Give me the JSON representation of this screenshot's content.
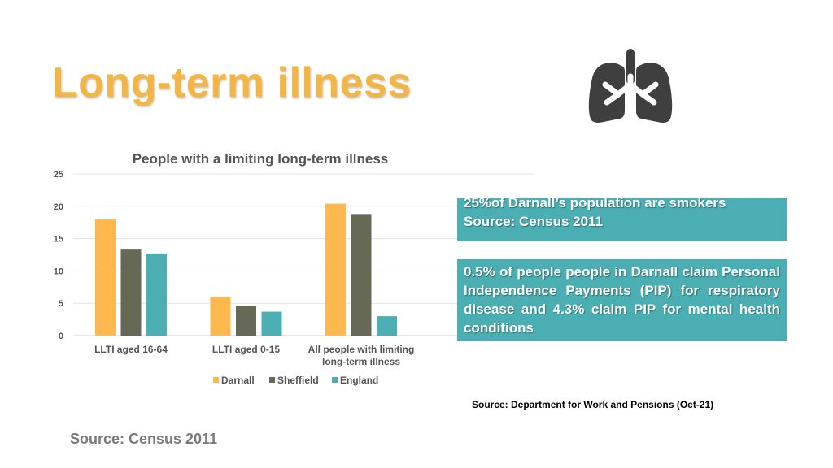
{
  "slide": {
    "title": "Long-term illness",
    "icon": "lungs-icon",
    "icon_color": "#3f3f3f"
  },
  "info_boxes": {
    "smokers_line1": "25%of Darnall’s population are smokers",
    "smokers_line2": "Source: Census 2011",
    "pip_text": "0.5% of people people in Darnall  claim Personal Independence Payments (PIP) for respiratory disease and 4.3% claim PIP for mental health conditions",
    "box_color": "#4aaeb3"
  },
  "sources": {
    "dwp": "Source:  Department for Work and Pensions (Oct-21)",
    "census": "Source: Census 2011"
  },
  "chart_data": {
    "type": "bar",
    "title": "People with a limiting long-term illness",
    "categories": [
      [
        "LLTI aged 16-64"
      ],
      [
        "LLTI aged 0-15"
      ],
      [
        "All people with limiting",
        "long-term illness"
      ]
    ],
    "series": [
      {
        "name": "Darnall",
        "color": "#ffb84d",
        "values": [
          18,
          6,
          20.4
        ]
      },
      {
        "name": "Sheffield",
        "color": "#656955",
        "values": [
          13.3,
          4.6,
          18.8
        ]
      },
      {
        "name": "England",
        "color": "#4aaeb3",
        "values": [
          12.7,
          3.7,
          3.0
        ]
      }
    ],
    "ylim": [
      0,
      25
    ],
    "yticks": [
      0,
      5,
      10,
      15,
      20,
      25
    ],
    "grid": true,
    "legend": "bottom"
  }
}
